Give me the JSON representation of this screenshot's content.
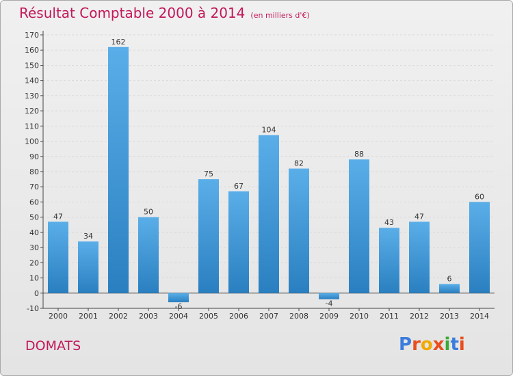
{
  "title": "Résultat Comptable 2000 à 2014",
  "subtitle": "(en milliers d'€)",
  "town": "DOMATS",
  "logo": "Proxiti",
  "colors": {
    "bar_top": "#5aaee8",
    "bar_bottom": "#2a7fc0",
    "title": "#c2185b",
    "grid": "#d8d8d8"
  },
  "chart_data": {
    "type": "bar",
    "title": "Résultat Comptable 2000 à 2014",
    "xlabel": "",
    "ylabel": "",
    "categories": [
      "2000",
      "2001",
      "2002",
      "2003",
      "2004",
      "2005",
      "2006",
      "2007",
      "2008",
      "2009",
      "2010",
      "2011",
      "2012",
      "2013",
      "2014"
    ],
    "values": [
      47,
      34,
      162,
      50,
      -6,
      75,
      67,
      104,
      82,
      -4,
      88,
      43,
      47,
      6,
      60
    ],
    "ylim": [
      -10,
      170
    ],
    "yticks": [
      -10,
      0,
      10,
      20,
      30,
      40,
      50,
      60,
      70,
      80,
      90,
      100,
      110,
      120,
      130,
      140,
      150,
      160,
      170
    ],
    "grid": true
  }
}
